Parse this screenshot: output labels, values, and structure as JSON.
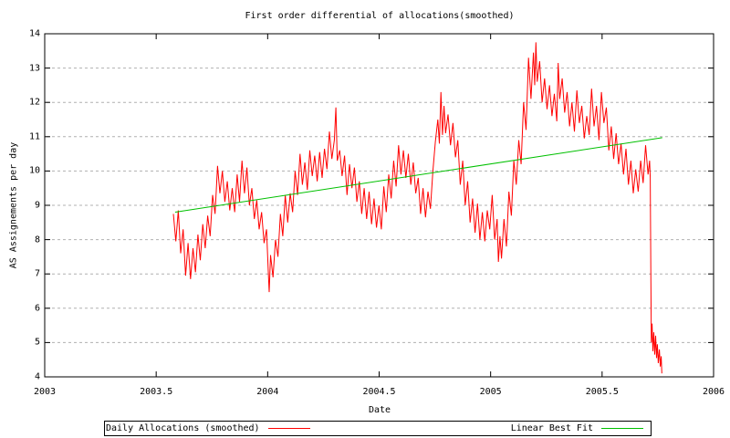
{
  "chart_data": {
    "type": "line",
    "title": "First order differential of allocations(smoothed)",
    "xlabel": "Date",
    "ylabel": "AS Assignements per day",
    "xlim": [
      2003,
      2006
    ],
    "ylim": [
      4,
      14
    ],
    "x_ticks": [
      2003,
      2003.5,
      2004,
      2004.5,
      2005,
      2005.5,
      2006
    ],
    "y_ticks": [
      4,
      5,
      6,
      7,
      8,
      9,
      10,
      11,
      12,
      13,
      14
    ],
    "grid": "horizontal-dashed",
    "legend_position": "below",
    "colors": {
      "grid": "#b0b0b0",
      "border": "#000000",
      "text": "#000000"
    },
    "series": [
      {
        "name": "Daily Allocations (smoothed)",
        "color": "#ff0000",
        "points": [
          [
            2003.577,
            8.75
          ],
          [
            2003.588,
            7.95
          ],
          [
            2003.599,
            8.85
          ],
          [
            2003.61,
            7.6
          ],
          [
            2003.621,
            8.3
          ],
          [
            2003.632,
            6.95
          ],
          [
            2003.643,
            7.9
          ],
          [
            2003.654,
            6.85
          ],
          [
            2003.665,
            7.75
          ],
          [
            2003.676,
            7.05
          ],
          [
            2003.687,
            8.15
          ],
          [
            2003.698,
            7.4
          ],
          [
            2003.709,
            8.45
          ],
          [
            2003.72,
            7.75
          ],
          [
            2003.731,
            8.7
          ],
          [
            2003.742,
            8.1
          ],
          [
            2003.753,
            9.3
          ],
          [
            2003.764,
            8.75
          ],
          [
            2003.775,
            10.15
          ],
          [
            2003.786,
            9.35
          ],
          [
            2003.797,
            10.0
          ],
          [
            2003.808,
            9.1
          ],
          [
            2003.819,
            9.7
          ],
          [
            2003.83,
            8.85
          ],
          [
            2003.841,
            9.5
          ],
          [
            2003.852,
            8.8
          ],
          [
            2003.863,
            9.9
          ],
          [
            2003.874,
            9.1
          ],
          [
            2003.885,
            10.3
          ],
          [
            2003.896,
            9.35
          ],
          [
            2003.907,
            10.1
          ],
          [
            2003.918,
            9.0
          ],
          [
            2003.929,
            9.5
          ],
          [
            2003.94,
            8.6
          ],
          [
            2003.951,
            9.15
          ],
          [
            2003.962,
            8.3
          ],
          [
            2003.973,
            8.8
          ],
          [
            2003.984,
            7.9
          ],
          [
            2003.995,
            8.3
          ],
          [
            2004.002,
            7.2
          ],
          [
            2004.007,
            6.47
          ],
          [
            2004.013,
            7.55
          ],
          [
            2004.024,
            6.9
          ],
          [
            2004.035,
            8.0
          ],
          [
            2004.046,
            7.5
          ],
          [
            2004.057,
            8.75
          ],
          [
            2004.068,
            8.1
          ],
          [
            2004.079,
            9.3
          ],
          [
            2004.09,
            8.5
          ],
          [
            2004.101,
            9.35
          ],
          [
            2004.112,
            8.8
          ],
          [
            2004.123,
            10.0
          ],
          [
            2004.134,
            9.3
          ],
          [
            2004.145,
            10.5
          ],
          [
            2004.156,
            9.6
          ],
          [
            2004.167,
            10.25
          ],
          [
            2004.178,
            9.45
          ],
          [
            2004.189,
            10.6
          ],
          [
            2004.2,
            9.85
          ],
          [
            2004.211,
            10.45
          ],
          [
            2004.222,
            9.7
          ],
          [
            2004.233,
            10.55
          ],
          [
            2004.244,
            9.8
          ],
          [
            2004.255,
            10.65
          ],
          [
            2004.266,
            10.05
          ],
          [
            2004.277,
            11.15
          ],
          [
            2004.288,
            10.35
          ],
          [
            2004.299,
            10.9
          ],
          [
            2004.306,
            11.85
          ],
          [
            2004.312,
            10.3
          ],
          [
            2004.323,
            10.6
          ],
          [
            2004.334,
            9.85
          ],
          [
            2004.345,
            10.45
          ],
          [
            2004.356,
            9.3
          ],
          [
            2004.367,
            10.2
          ],
          [
            2004.378,
            9.5
          ],
          [
            2004.389,
            10.1
          ],
          [
            2004.4,
            9.1
          ],
          [
            2004.411,
            9.7
          ],
          [
            2004.422,
            8.75
          ],
          [
            2004.433,
            9.5
          ],
          [
            2004.444,
            8.6
          ],
          [
            2004.455,
            9.4
          ],
          [
            2004.466,
            8.45
          ],
          [
            2004.477,
            9.2
          ],
          [
            2004.488,
            8.35
          ],
          [
            2004.499,
            9.0
          ],
          [
            2004.51,
            8.3
          ],
          [
            2004.521,
            9.55
          ],
          [
            2004.532,
            8.8
          ],
          [
            2004.543,
            9.9
          ],
          [
            2004.554,
            9.2
          ],
          [
            2004.565,
            10.3
          ],
          [
            2004.576,
            9.55
          ],
          [
            2004.587,
            10.75
          ],
          [
            2004.598,
            9.9
          ],
          [
            2004.609,
            10.6
          ],
          [
            2004.62,
            9.8
          ],
          [
            2004.631,
            10.5
          ],
          [
            2004.642,
            9.6
          ],
          [
            2004.653,
            10.25
          ],
          [
            2004.664,
            9.35
          ],
          [
            2004.675,
            9.8
          ],
          [
            2004.686,
            8.75
          ],
          [
            2004.697,
            9.5
          ],
          [
            2004.708,
            8.65
          ],
          [
            2004.719,
            9.4
          ],
          [
            2004.73,
            8.9
          ],
          [
            2004.741,
            10.0
          ],
          [
            2004.752,
            10.85
          ],
          [
            2004.763,
            11.5
          ],
          [
            2004.77,
            10.8
          ],
          [
            2004.777,
            12.3
          ],
          [
            2004.784,
            11.05
          ],
          [
            2004.791,
            11.9
          ],
          [
            2004.798,
            11.1
          ],
          [
            2004.809,
            11.65
          ],
          [
            2004.82,
            10.75
          ],
          [
            2004.831,
            11.4
          ],
          [
            2004.842,
            10.4
          ],
          [
            2004.853,
            10.9
          ],
          [
            2004.864,
            9.6
          ],
          [
            2004.875,
            10.3
          ],
          [
            2004.886,
            9.0
          ],
          [
            2004.897,
            9.7
          ],
          [
            2004.908,
            8.5
          ],
          [
            2004.919,
            9.2
          ],
          [
            2004.93,
            8.2
          ],
          [
            2004.941,
            9.05
          ],
          [
            2004.952,
            8.0
          ],
          [
            2004.963,
            8.8
          ],
          [
            2004.974,
            7.95
          ],
          [
            2004.985,
            8.85
          ],
          [
            2004.996,
            8.3
          ],
          [
            2005.007,
            9.3
          ],
          [
            2005.018,
            8.0
          ],
          [
            2005.029,
            8.6
          ],
          [
            2005.035,
            7.35
          ],
          [
            2005.042,
            8.1
          ],
          [
            2005.049,
            7.45
          ],
          [
            2005.06,
            8.6
          ],
          [
            2005.071,
            7.8
          ],
          [
            2005.082,
            9.4
          ],
          [
            2005.093,
            8.7
          ],
          [
            2005.104,
            10.3
          ],
          [
            2005.115,
            9.6
          ],
          [
            2005.126,
            10.9
          ],
          [
            2005.137,
            10.2
          ],
          [
            2005.148,
            12.0
          ],
          [
            2005.159,
            11.2
          ],
          [
            2005.17,
            13.3
          ],
          [
            2005.181,
            12.1
          ],
          [
            2005.192,
            13.45
          ],
          [
            2005.198,
            12.5
          ],
          [
            2005.203,
            13.75
          ],
          [
            2005.209,
            12.6
          ],
          [
            2005.22,
            13.2
          ],
          [
            2005.231,
            12.0
          ],
          [
            2005.242,
            12.7
          ],
          [
            2005.253,
            11.8
          ],
          [
            2005.264,
            12.5
          ],
          [
            2005.275,
            11.6
          ],
          [
            2005.286,
            12.25
          ],
          [
            2005.297,
            11.45
          ],
          [
            2005.303,
            13.15
          ],
          [
            2005.31,
            12.1
          ],
          [
            2005.321,
            12.7
          ],
          [
            2005.332,
            11.7
          ],
          [
            2005.343,
            12.3
          ],
          [
            2005.354,
            11.3
          ],
          [
            2005.365,
            12.0
          ],
          [
            2005.376,
            11.15
          ],
          [
            2005.387,
            12.35
          ],
          [
            2005.398,
            11.4
          ],
          [
            2005.409,
            11.9
          ],
          [
            2005.42,
            10.95
          ],
          [
            2005.431,
            11.6
          ],
          [
            2005.442,
            11.05
          ],
          [
            2005.453,
            12.4
          ],
          [
            2005.464,
            11.3
          ],
          [
            2005.475,
            11.9
          ],
          [
            2005.486,
            10.9
          ],
          [
            2005.497,
            12.3
          ],
          [
            2005.508,
            11.4
          ],
          [
            2005.519,
            11.85
          ],
          [
            2005.53,
            10.6
          ],
          [
            2005.541,
            11.3
          ],
          [
            2005.552,
            10.35
          ],
          [
            2005.563,
            11.1
          ],
          [
            2005.574,
            10.2
          ],
          [
            2005.585,
            10.8
          ],
          [
            2005.596,
            9.9
          ],
          [
            2005.607,
            10.65
          ],
          [
            2005.618,
            9.6
          ],
          [
            2005.629,
            10.3
          ],
          [
            2005.64,
            9.35
          ],
          [
            2005.651,
            10.05
          ],
          [
            2005.662,
            9.4
          ],
          [
            2005.673,
            10.3
          ],
          [
            2005.684,
            9.65
          ],
          [
            2005.695,
            10.75
          ],
          [
            2005.706,
            9.9
          ],
          [
            2005.713,
            10.3
          ],
          [
            2005.716,
            9.8
          ],
          [
            2005.719,
            6.8
          ],
          [
            2005.721,
            5.0
          ],
          [
            2005.724,
            5.55
          ],
          [
            2005.728,
            4.75
          ],
          [
            2005.732,
            5.3
          ],
          [
            2005.736,
            4.65
          ],
          [
            2005.74,
            5.2
          ],
          [
            2005.744,
            4.55
          ],
          [
            2005.748,
            4.95
          ],
          [
            2005.752,
            4.4
          ],
          [
            2005.757,
            4.8
          ],
          [
            2005.761,
            4.3
          ],
          [
            2005.765,
            4.6
          ],
          [
            2005.768,
            4.1
          ]
        ]
      },
      {
        "name": "Linear Best Fit",
        "color": "#00c000",
        "points": [
          [
            2003.585,
            8.8
          ],
          [
            2005.77,
            10.97
          ]
        ]
      }
    ]
  }
}
